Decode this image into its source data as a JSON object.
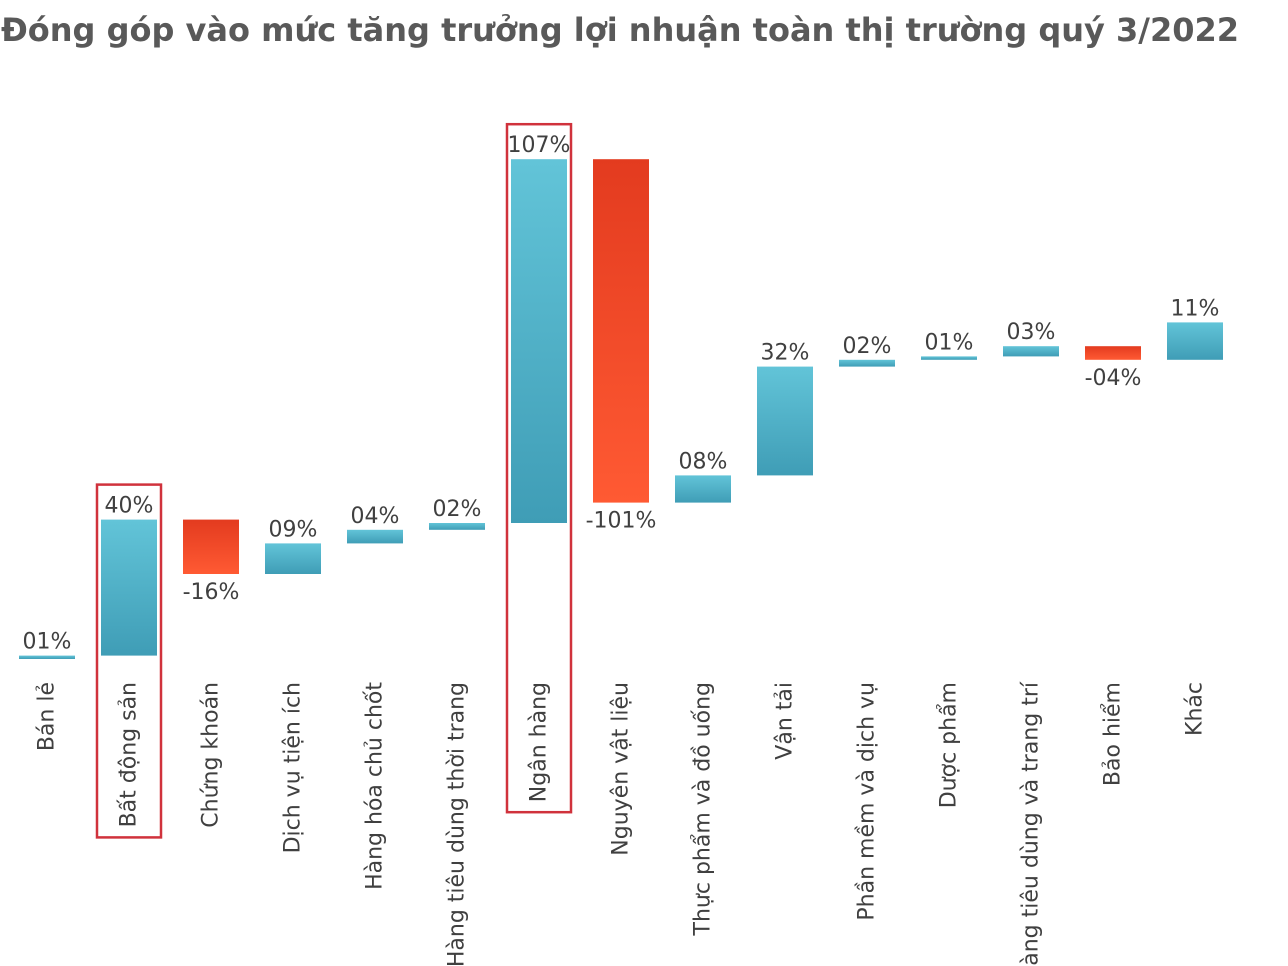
{
  "chart_data": {
    "type": "bar",
    "subtype": "waterfall",
    "title": "Đóng góp vào mức tăng trưởng lợi nhuận toàn thị trường quý 3/2022",
    "categories": [
      "Bán lẻ",
      "Bất động sản",
      "Chứng khoán",
      "Dịch vụ tiện ích",
      "Hàng hóa chủ chốt",
      "Hàng tiêu dùng thời trang",
      "Ngân hàng",
      "Nguyên vật liệu",
      "Thực phẩm và đồ uống",
      "Vận tải",
      "Phần mềm và dịch vụ",
      "Dược phẩm",
      "Hàng tiêu dùng và trang trí",
      "Bảo hiểm",
      "Khác"
    ],
    "values": [
      1,
      40,
      -16,
      9,
      4,
      2,
      107,
      -101,
      8,
      32,
      2,
      1,
      3,
      -4,
      11
    ],
    "labels": [
      "01%",
      "40%",
      "-16%",
      "09%",
      "04%",
      "02%",
      "107%",
      "-101%",
      "08%",
      "32%",
      "02%",
      "01%",
      "03%",
      "-04%",
      "11%"
    ],
    "highlighted": [
      "Bất động sản",
      "Ngân hàng"
    ],
    "colors": {
      "positive": "#4bacc6",
      "negative": "#f0522b",
      "highlight_box": "#d0323c"
    },
    "grid": false,
    "legend": "none"
  }
}
